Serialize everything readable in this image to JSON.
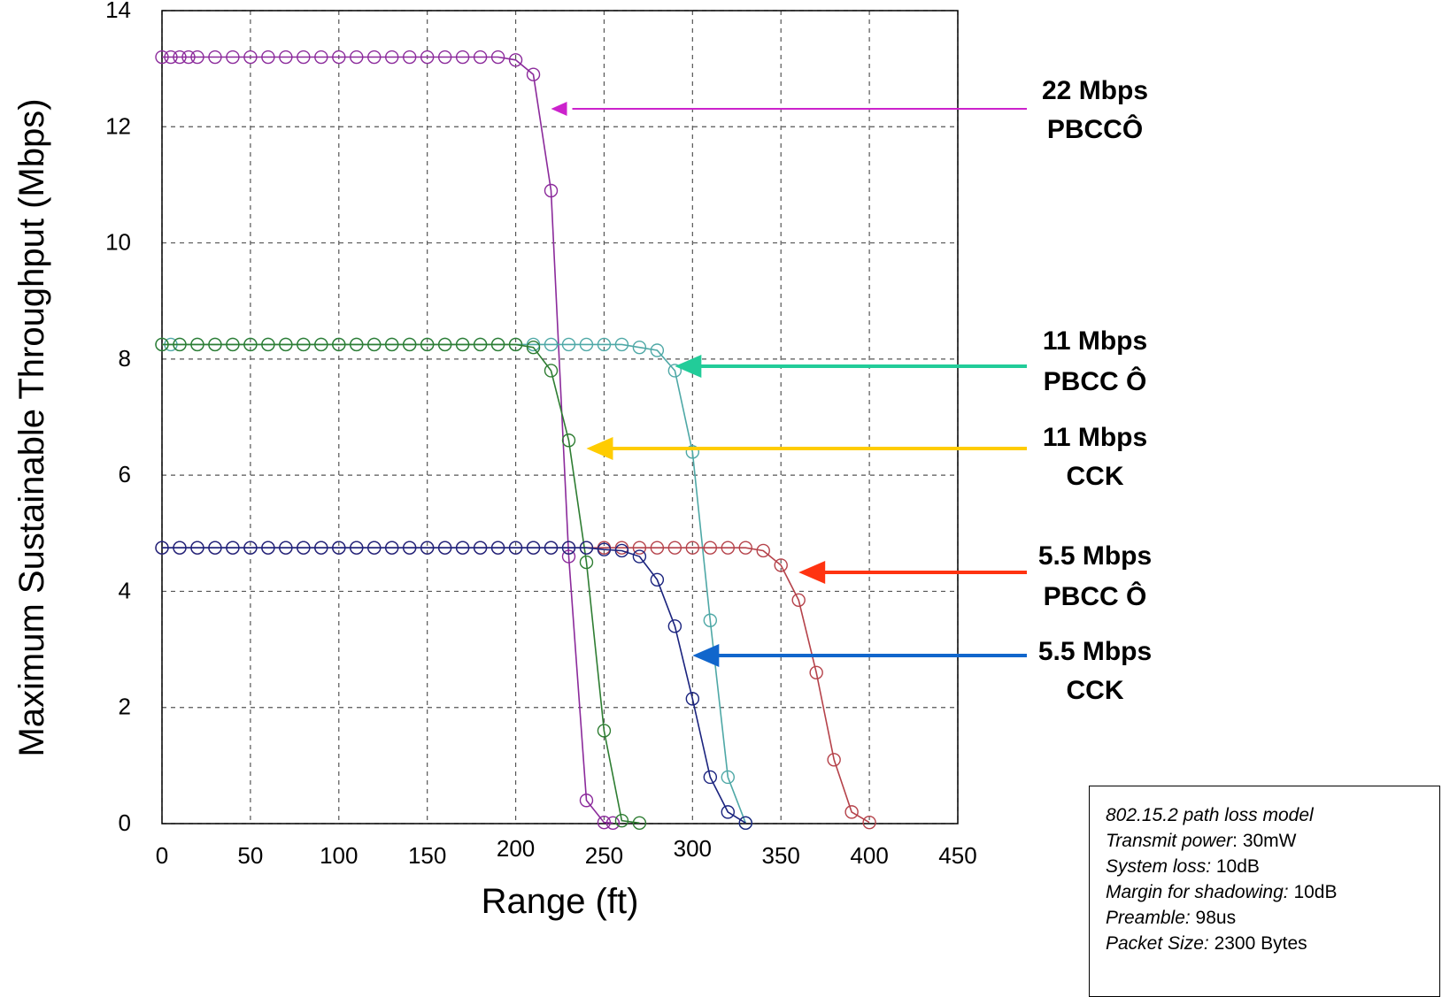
{
  "chart_data": {
    "type": "line",
    "xlabel": "Range (ft)",
    "ylabel": "Maximum Sustainable Throughput (Mbps)",
    "xlim": [
      0,
      450
    ],
    "ylim": [
      0,
      14
    ],
    "xticks": [
      "0",
      "50",
      "100",
      "150",
      "200",
      "250",
      "300",
      "350",
      "400",
      "450"
    ],
    "yticks": [
      "0",
      "2",
      "4",
      "6",
      "8",
      "10",
      "12",
      "14"
    ],
    "grid": true,
    "series": [
      {
        "name": "22 Mbps PBCCÔ",
        "color": "#8b2a9b",
        "points": [
          [
            0,
            13.2
          ],
          [
            5,
            13.2
          ],
          [
            10,
            13.2
          ],
          [
            15,
            13.2
          ],
          [
            20,
            13.2
          ],
          [
            30,
            13.2
          ],
          [
            40,
            13.2
          ],
          [
            50,
            13.2
          ],
          [
            60,
            13.2
          ],
          [
            70,
            13.2
          ],
          [
            80,
            13.2
          ],
          [
            90,
            13.2
          ],
          [
            100,
            13.2
          ],
          [
            110,
            13.2
          ],
          [
            120,
            13.2
          ],
          [
            130,
            13.2
          ],
          [
            140,
            13.2
          ],
          [
            150,
            13.2
          ],
          [
            160,
            13.2
          ],
          [
            170,
            13.2
          ],
          [
            180,
            13.2
          ],
          [
            190,
            13.2
          ],
          [
            200,
            13.15
          ],
          [
            210,
            12.9
          ],
          [
            220,
            10.9
          ],
          [
            230,
            4.6
          ],
          [
            240,
            0.4
          ],
          [
            250,
            0.02
          ],
          [
            255,
            0.01
          ]
        ]
      },
      {
        "name": "11 Mbps PBCC Ô",
        "color": "#4ea8a6",
        "points": [
          [
            0,
            8.25
          ],
          [
            5,
            8.25
          ],
          [
            10,
            8.25
          ],
          [
            20,
            8.25
          ],
          [
            30,
            8.25
          ],
          [
            40,
            8.25
          ],
          [
            50,
            8.25
          ],
          [
            60,
            8.25
          ],
          [
            70,
            8.25
          ],
          [
            80,
            8.25
          ],
          [
            90,
            8.25
          ],
          [
            100,
            8.25
          ],
          [
            110,
            8.25
          ],
          [
            120,
            8.25
          ],
          [
            130,
            8.25
          ],
          [
            140,
            8.25
          ],
          [
            150,
            8.25
          ],
          [
            160,
            8.25
          ],
          [
            170,
            8.25
          ],
          [
            180,
            8.25
          ],
          [
            190,
            8.25
          ],
          [
            200,
            8.25
          ],
          [
            210,
            8.25
          ],
          [
            220,
            8.25
          ],
          [
            230,
            8.25
          ],
          [
            240,
            8.25
          ],
          [
            250,
            8.25
          ],
          [
            260,
            8.25
          ],
          [
            270,
            8.2
          ],
          [
            280,
            8.15
          ],
          [
            290,
            7.8
          ],
          [
            300,
            6.4
          ],
          [
            310,
            3.5
          ],
          [
            320,
            0.8
          ],
          [
            330,
            0.01
          ]
        ]
      },
      {
        "name": "11 Mbps CCK",
        "color": "#2e7d32",
        "points": [
          [
            0,
            8.25
          ],
          [
            10,
            8.25
          ],
          [
            20,
            8.25
          ],
          [
            30,
            8.25
          ],
          [
            40,
            8.25
          ],
          [
            50,
            8.25
          ],
          [
            60,
            8.25
          ],
          [
            70,
            8.25
          ],
          [
            80,
            8.25
          ],
          [
            90,
            8.25
          ],
          [
            100,
            8.25
          ],
          [
            110,
            8.25
          ],
          [
            120,
            8.25
          ],
          [
            130,
            8.25
          ],
          [
            140,
            8.25
          ],
          [
            150,
            8.25
          ],
          [
            160,
            8.25
          ],
          [
            170,
            8.25
          ],
          [
            180,
            8.25
          ],
          [
            190,
            8.25
          ],
          [
            200,
            8.25
          ],
          [
            210,
            8.2
          ],
          [
            220,
            7.8
          ],
          [
            230,
            6.6
          ],
          [
            240,
            4.5
          ],
          [
            250,
            1.6
          ],
          [
            260,
            0.05
          ],
          [
            270,
            0.01
          ]
        ]
      },
      {
        "name": "5.5 Mbps PBCC Ô",
        "color": "#b5424a",
        "points": [
          [
            0,
            4.75
          ],
          [
            10,
            4.75
          ],
          [
            20,
            4.75
          ],
          [
            30,
            4.75
          ],
          [
            40,
            4.75
          ],
          [
            50,
            4.75
          ],
          [
            60,
            4.75
          ],
          [
            70,
            4.75
          ],
          [
            80,
            4.75
          ],
          [
            90,
            4.75
          ],
          [
            100,
            4.75
          ],
          [
            110,
            4.75
          ],
          [
            120,
            4.75
          ],
          [
            130,
            4.75
          ],
          [
            140,
            4.75
          ],
          [
            150,
            4.75
          ],
          [
            160,
            4.75
          ],
          [
            170,
            4.75
          ],
          [
            180,
            4.75
          ],
          [
            190,
            4.75
          ],
          [
            200,
            4.75
          ],
          [
            210,
            4.75
          ],
          [
            220,
            4.75
          ],
          [
            230,
            4.75
          ],
          [
            240,
            4.75
          ],
          [
            250,
            4.75
          ],
          [
            260,
            4.75
          ],
          [
            270,
            4.75
          ],
          [
            280,
            4.75
          ],
          [
            290,
            4.75
          ],
          [
            300,
            4.75
          ],
          [
            310,
            4.75
          ],
          [
            320,
            4.75
          ],
          [
            330,
            4.75
          ],
          [
            340,
            4.7
          ],
          [
            350,
            4.45
          ],
          [
            360,
            3.85
          ],
          [
            370,
            2.6
          ],
          [
            380,
            1.1
          ],
          [
            390,
            0.2
          ],
          [
            400,
            0.02
          ]
        ]
      },
      {
        "name": "5.5 Mbps CCK",
        "color": "#1a237e",
        "points": [
          [
            0,
            4.75
          ],
          [
            10,
            4.75
          ],
          [
            20,
            4.75
          ],
          [
            30,
            4.75
          ],
          [
            40,
            4.75
          ],
          [
            50,
            4.75
          ],
          [
            60,
            4.75
          ],
          [
            70,
            4.75
          ],
          [
            80,
            4.75
          ],
          [
            90,
            4.75
          ],
          [
            100,
            4.75
          ],
          [
            110,
            4.75
          ],
          [
            120,
            4.75
          ],
          [
            130,
            4.75
          ],
          [
            140,
            4.75
          ],
          [
            150,
            4.75
          ],
          [
            160,
            4.75
          ],
          [
            170,
            4.75
          ],
          [
            180,
            4.75
          ],
          [
            190,
            4.75
          ],
          [
            200,
            4.75
          ],
          [
            210,
            4.75
          ],
          [
            220,
            4.75
          ],
          [
            230,
            4.75
          ],
          [
            240,
            4.75
          ],
          [
            250,
            4.72
          ],
          [
            260,
            4.7
          ],
          [
            270,
            4.6
          ],
          [
            280,
            4.2
          ],
          [
            290,
            3.4
          ],
          [
            300,
            2.15
          ],
          [
            310,
            0.8
          ],
          [
            320,
            0.2
          ],
          [
            330,
            0.01
          ]
        ]
      }
    ],
    "annotations": [
      {
        "lines": [
          "22 Mbps",
          "PBCCÔ"
        ],
        "arrow_color": "#cc22cc",
        "target": [
          220,
          12.35
        ]
      },
      {
        "lines": [
          "11 Mbps",
          "PBCC Ô"
        ],
        "arrow_color": "#22cc99",
        "target": [
          290,
          7.95
        ]
      },
      {
        "lines": [
          "11 Mbps",
          "CCK"
        ],
        "arrow_color": "#ffcc00",
        "target": [
          240,
          6.55
        ]
      },
      {
        "lines": [
          "5.5 Mbps",
          "PBCC Ô"
        ],
        "arrow_color": "#ff3311",
        "target": [
          360,
          4.35
        ]
      },
      {
        "lines": [
          "5.5 Mbps",
          "CCK"
        ],
        "arrow_color": "#1166cc",
        "target": [
          300,
          2.95
        ]
      }
    ]
  },
  "info_box": {
    "lines": [
      {
        "key": "802.15.2 path loss model",
        "value": ""
      },
      {
        "key": "Transmit power",
        "value": ": 30mW"
      },
      {
        "key": "System loss:",
        "value": " 10dB"
      },
      {
        "key": "Margin for shadowing:",
        "value": " 10dB"
      },
      {
        "key": "Preamble:",
        "value": " 98us"
      },
      {
        "key": "Packet Size:",
        "value": " 2300 Bytes"
      }
    ]
  }
}
